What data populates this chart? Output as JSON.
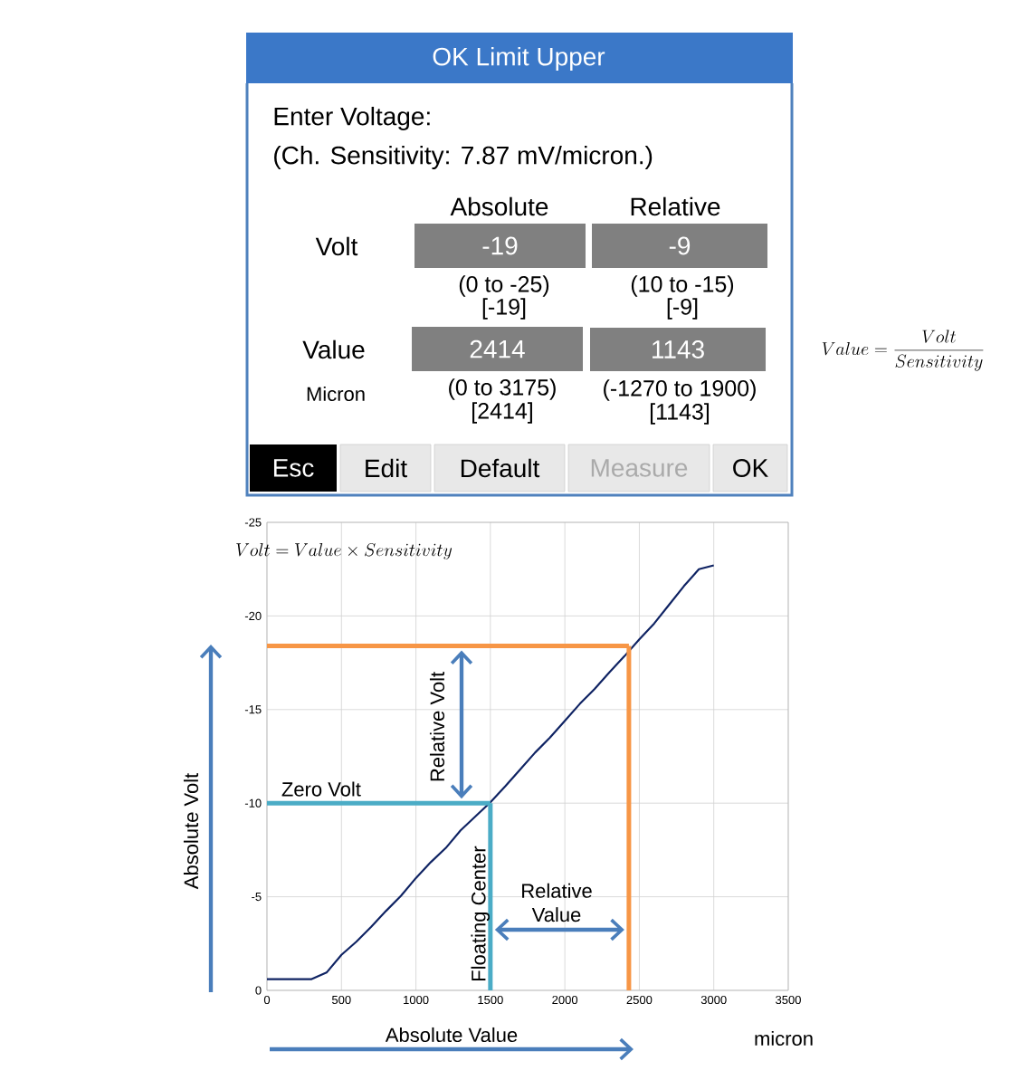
{
  "chart_data": [
    {
      "type": "other",
      "title": "OK Limit Upper",
      "annotations": [
        "Enter Voltage:",
        "(Ch. Sensitivity:  7.87 mV/micron.)",
        "Absolute",
        "Relative",
        "Volt",
        "-19",
        "-9",
        "(0 to -25)",
        "[-19]",
        "(10 to -15)",
        "[-9]",
        "Value",
        "2414",
        "1143",
        "Micron",
        "(0 to 3175)",
        "[2414]",
        "(-1270 to 1900)",
        "[1143]",
        "Esc",
        "Edit",
        "Default",
        "Measure",
        "OK",
        "Value = \\frac{Volt}{Sensitivity}"
      ]
    },
    {
      "type": "line",
      "xlabel": "Absolute Value",
      "ylabel": "Absolute Volt",
      "x": [
        0,
        300,
        400,
        500,
        600,
        700,
        800,
        900,
        1000,
        1100,
        1200,
        1300,
        1400,
        1500,
        1600,
        1700,
        1800,
        1900,
        2000,
        2100,
        2200,
        2300,
        2400,
        2500,
        2600,
        2700,
        2800,
        2900,
        3000
      ],
      "series": [
        {
          "color": "#0f2363",
          "values": [
            -0.6,
            -0.6,
            -0.95,
            -1.9,
            -2.6,
            -3.4,
            -4.25,
            -5.05,
            -6.0,
            -6.85,
            -7.6,
            -8.55,
            -9.3,
            -10.05,
            -10.9,
            -11.8,
            -12.7,
            -13.5,
            -14.4,
            -15.3,
            -16.1,
            -17.0,
            -17.85,
            -18.75,
            -19.6,
            -20.6,
            -21.6,
            -22.5,
            -22.7
          ]
        }
      ],
      "xlim": [
        0,
        3500
      ],
      "ylim": [
        0,
        -25
      ],
      "xticks": [
        0,
        500,
        1000,
        1500,
        2000,
        2500,
        3000,
        3500
      ],
      "yticks": [
        0,
        -5,
        -10,
        -15,
        -20,
        -25
      ],
      "grid": true,
      "ref_lines": [
        {
          "axis": "y",
          "value": -10,
          "label": "Zero Volt",
          "color": "#4bacc6"
        },
        {
          "axis": "x",
          "value": 1500,
          "label": "Floating Center",
          "color": "#4bacc6"
        },
        {
          "axis": "y",
          "value": -18.4,
          "color": "#f79646"
        },
        {
          "axis": "x",
          "value": 2430,
          "color": "#f79646"
        }
      ],
      "annotations": [
        "Volt = Value \\times Sensitivity",
        "Relative Volt",
        "Relative Value",
        "micron"
      ]
    }
  ]
}
